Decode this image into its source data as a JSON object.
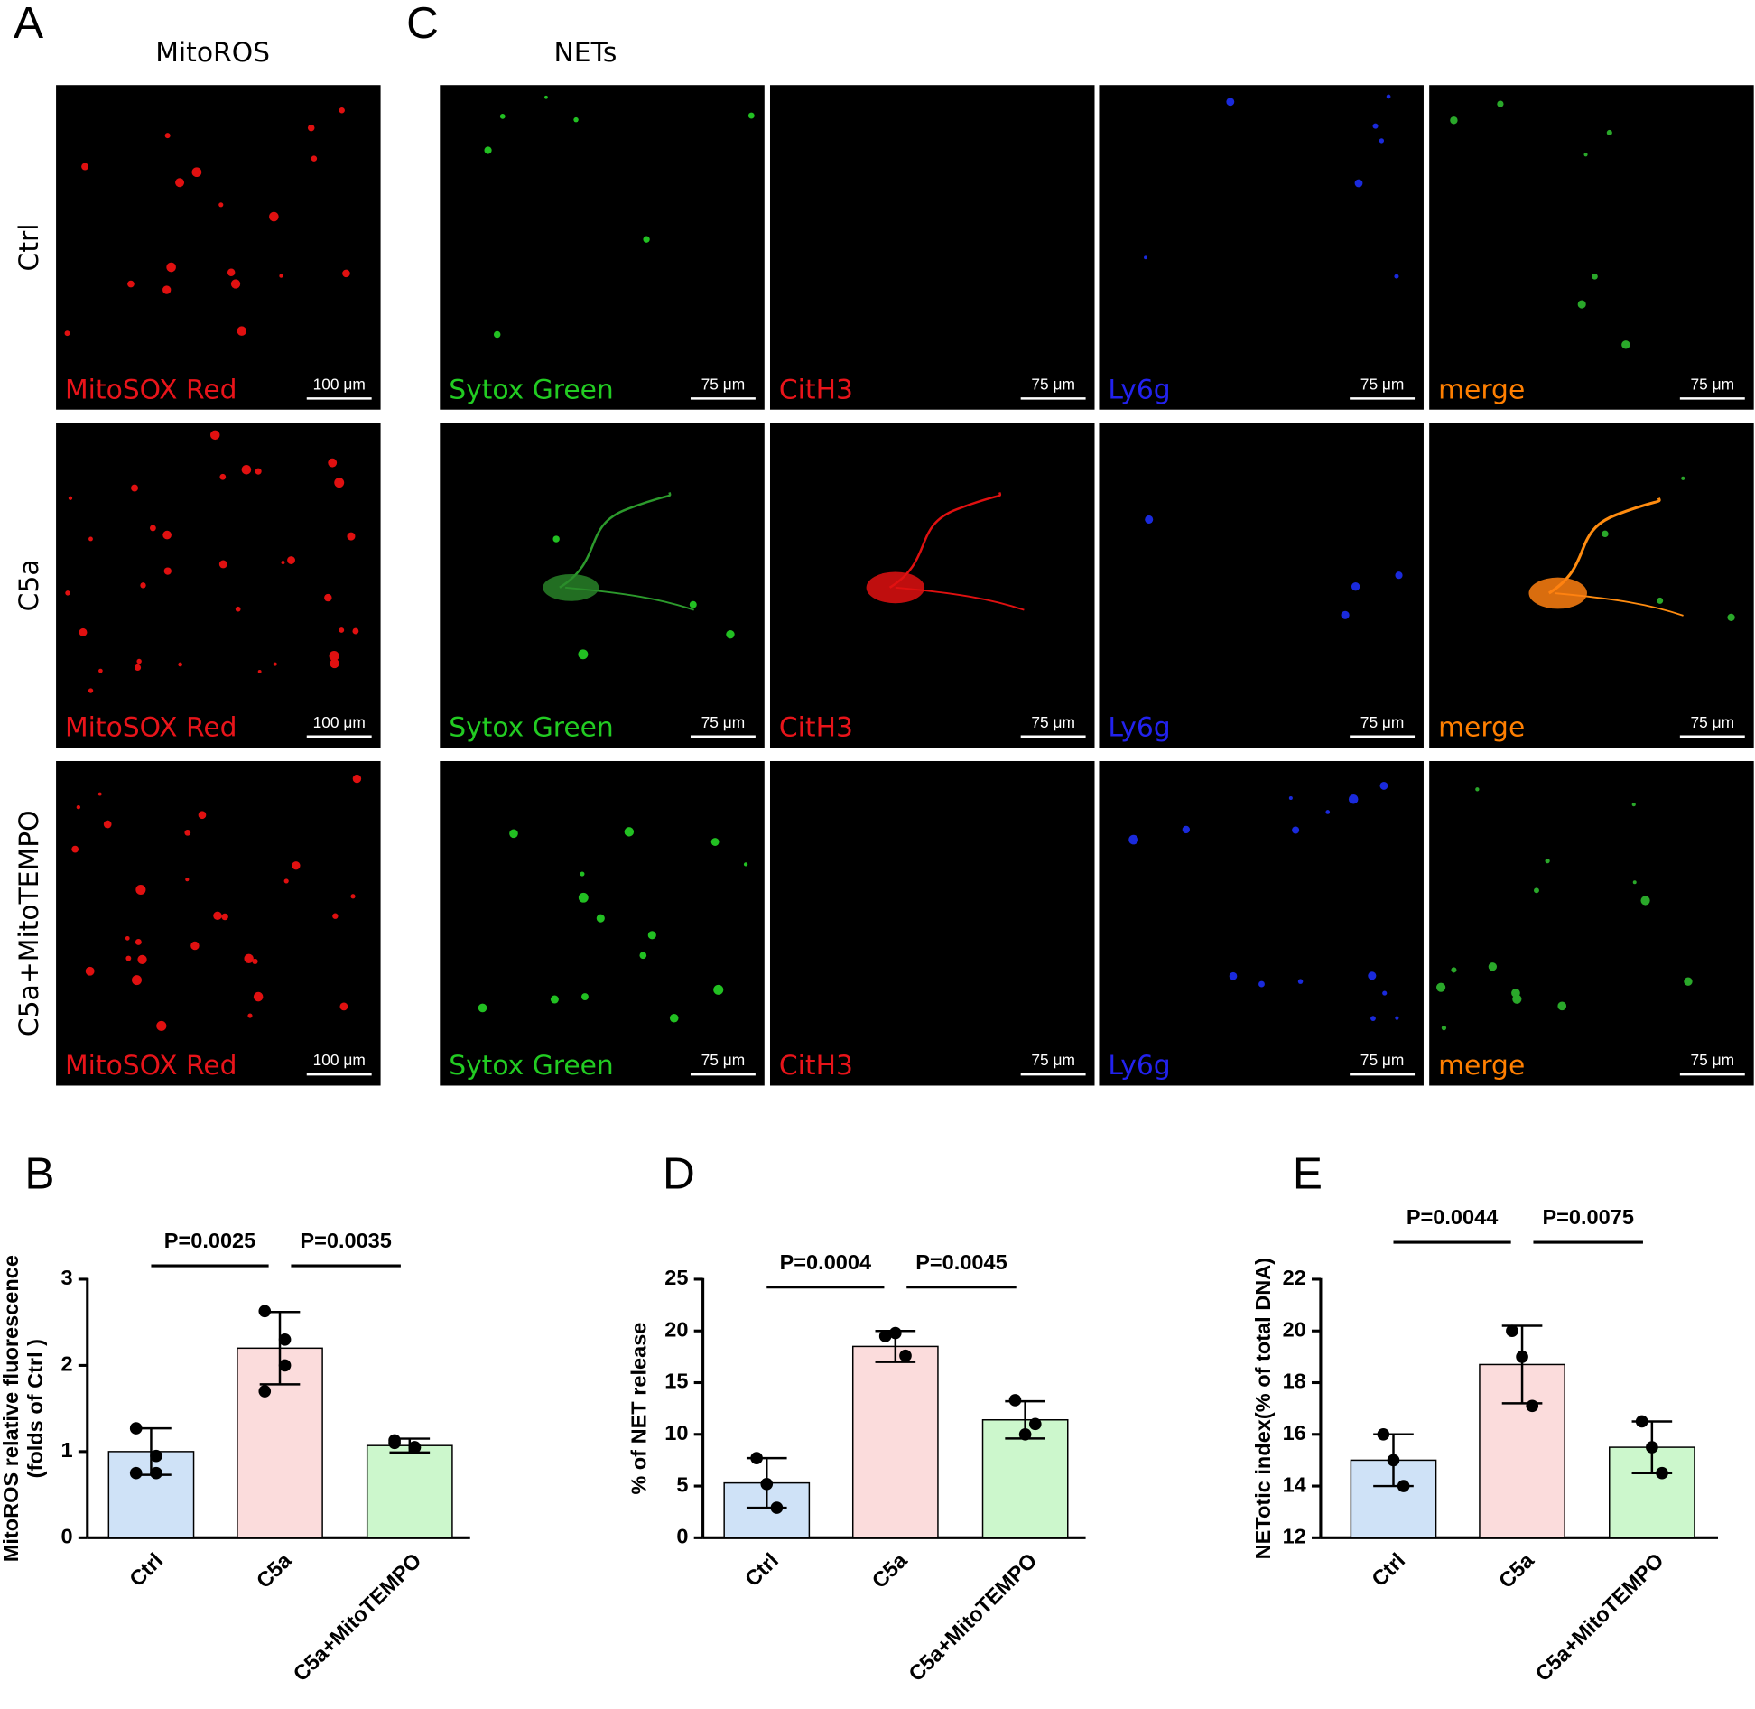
{
  "panel_labels": {
    "a": "A",
    "c": "C"
  },
  "mitoros": {
    "title": "MitoROS",
    "rows": [
      "Ctrl",
      "C5a",
      "C5a+MitoTEMPO"
    ],
    "channel": "MitoSOX Red",
    "scale_bar": "100 μm"
  },
  "nets": {
    "title": "NETs",
    "channels": [
      "Sytox Green",
      "CitH3",
      "Ly6g",
      "merge"
    ],
    "scale_bar": "75 μm"
  },
  "chart_data": [
    {
      "type": "bar",
      "panel": "B",
      "ylabel": [
        "MitoROS relative fluorescence",
        "(folds of Ctrl )"
      ],
      "categories": [
        "Ctrl",
        "C5a",
        "C5a+MitoTEMPO"
      ],
      "values": [
        1.0,
        2.2,
        1.07
      ],
      "errors": [
        0.27,
        0.42,
        0.08
      ],
      "points": [
        [
          1.27,
          0.95,
          0.75,
          0.75
        ],
        [
          2.63,
          2.3,
          2.0,
          1.7
        ],
        [
          1.13,
          1.05,
          1.05,
          1.1
        ]
      ],
      "colors": [
        "#cfe2f7",
        "#fbdcdc",
        "#ccf7cc"
      ],
      "comparisons": [
        "P=0.0025",
        "P=0.0035"
      ],
      "ylim": [
        0,
        3
      ],
      "yticks": [
        0,
        1,
        2,
        3
      ]
    },
    {
      "type": "bar",
      "panel": "D",
      "ylabel": [
        "% of NET release"
      ],
      "categories": [
        "Ctrl",
        "C5a",
        "C5a+MitoTEMPO"
      ],
      "values": [
        5.3,
        18.5,
        11.4
      ],
      "errors": [
        2.4,
        1.5,
        1.8
      ],
      "points": [
        [
          7.7,
          5.2,
          2.9
        ],
        [
          19.5,
          19.8,
          17.6
        ],
        [
          13.3,
          10.0,
          11.0
        ]
      ],
      "colors": [
        "#cfe2f7",
        "#fbdcdc",
        "#ccf7cc"
      ],
      "comparisons": [
        "P=0.0004",
        "P=0.0045"
      ],
      "ylim": [
        0,
        25
      ],
      "yticks": [
        0,
        5,
        10,
        15,
        20,
        25
      ]
    },
    {
      "type": "bar",
      "panel": "E",
      "ylabel": [
        "NETotic index(% of total DNA)"
      ],
      "categories": [
        "Ctrl",
        "C5a",
        "C5a+MitoTEMPO"
      ],
      "values": [
        15.0,
        18.7,
        15.5
      ],
      "errors": [
        1.0,
        1.5,
        1.0
      ],
      "points": [
        [
          16.0,
          15.0,
          14.0
        ],
        [
          20.0,
          19.0,
          17.1
        ],
        [
          16.5,
          15.5,
          14.5
        ]
      ],
      "colors": [
        "#cfe2f7",
        "#fbdcdc",
        "#ccf7cc"
      ],
      "comparisons": [
        "P=0.0044",
        "P=0.0075"
      ],
      "ylim": [
        12,
        22
      ],
      "yticks": [
        12,
        14,
        16,
        18,
        20,
        22
      ]
    }
  ]
}
